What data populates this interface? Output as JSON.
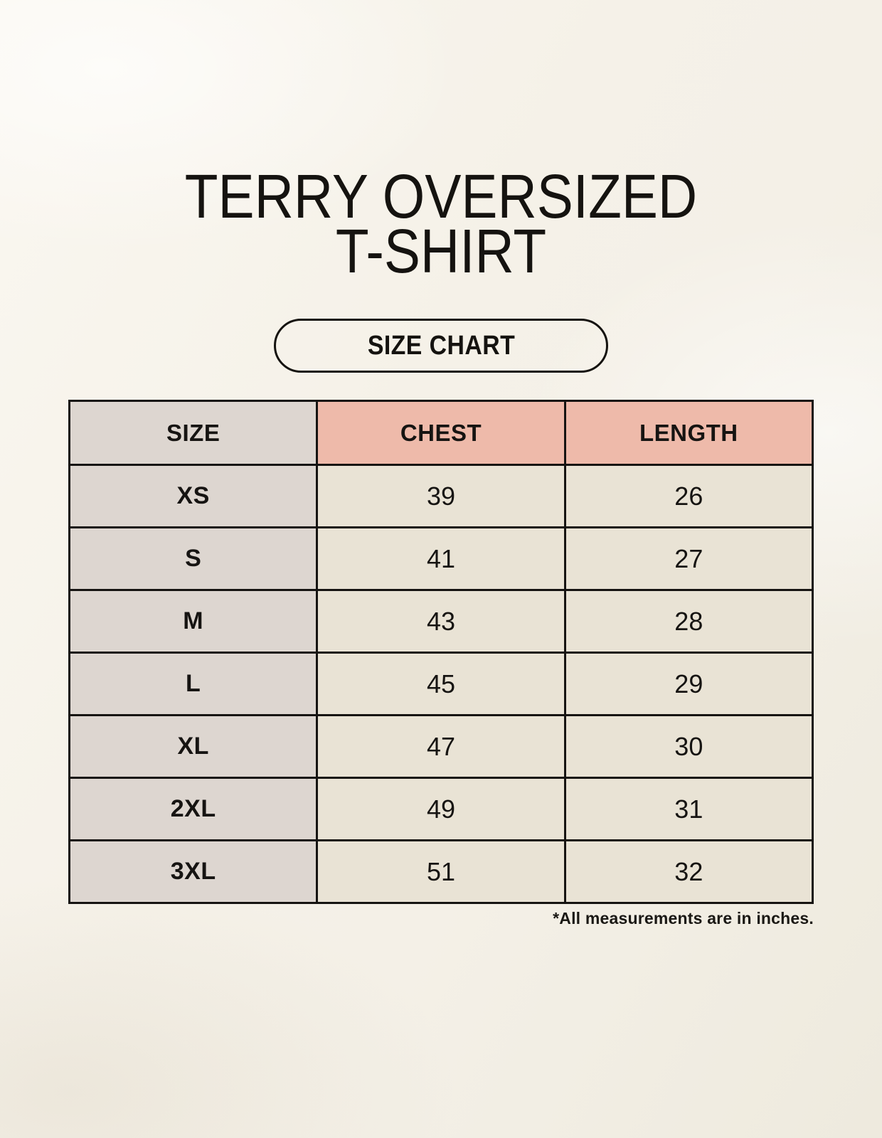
{
  "page": {
    "title_line1": "TERRY OVERSIZED",
    "title_line2": "T-SHIRT",
    "button_label": "SIZE CHART",
    "footnote": "*All measurements are in inches."
  },
  "colors": {
    "background_cream": "#f5f1e8",
    "header_pink": "#eebaaa",
    "size_column_gray": "#ddd6d0",
    "value_cell_beige": "#e9e3d5",
    "border_black": "#161412"
  },
  "chart_data": {
    "type": "table",
    "title": "TERRY OVERSIZED T-SHIRT size chart",
    "columns": [
      "SIZE",
      "CHEST",
      "LENGTH"
    ],
    "units": "inches",
    "rows": [
      [
        "XS",
        "39",
        "26"
      ],
      [
        "S",
        "41",
        "27"
      ],
      [
        "M",
        "43",
        "28"
      ],
      [
        "L",
        "45",
        "29"
      ],
      [
        "XL",
        "47",
        "30"
      ],
      [
        "2XL",
        "49",
        "31"
      ],
      [
        "3XL",
        "51",
        "32"
      ]
    ]
  }
}
